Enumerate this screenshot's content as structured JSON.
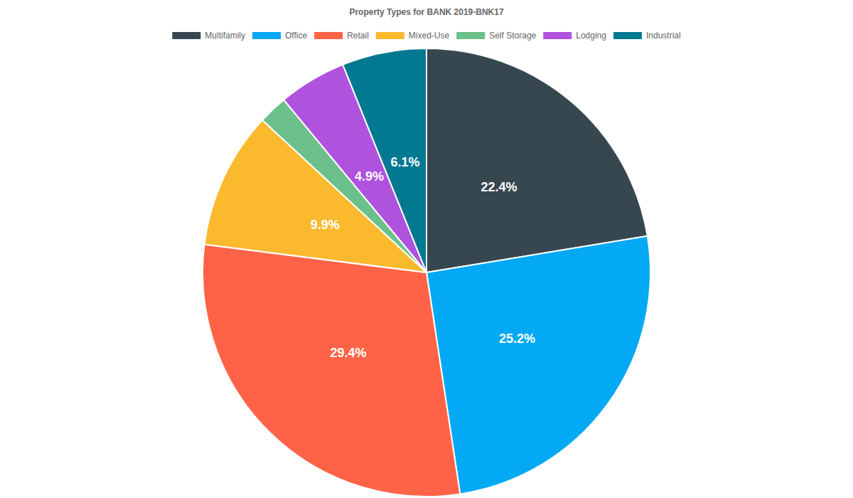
{
  "chart_data": {
    "type": "pie",
    "title": "Property Types for BANK 2019-BNK17",
    "categories": [
      "Multifamily",
      "Office",
      "Retail",
      "Mixed-Use",
      "Self Storage",
      "Lodging",
      "Industrial"
    ],
    "values": [
      22.4,
      25.2,
      29.4,
      9.9,
      2.1,
      4.9,
      6.1
    ],
    "value_labels": [
      "22.4%",
      "25.2%",
      "29.4%",
      "9.9%",
      null,
      "4.9%",
      "6.1%"
    ],
    "colors": [
      "#37474f",
      "#03a9f4",
      "#ff6347",
      "#fbb92e",
      "#6cc08b",
      "#af52de",
      "#007991"
    ],
    "data_labels": true,
    "legend": "top"
  }
}
